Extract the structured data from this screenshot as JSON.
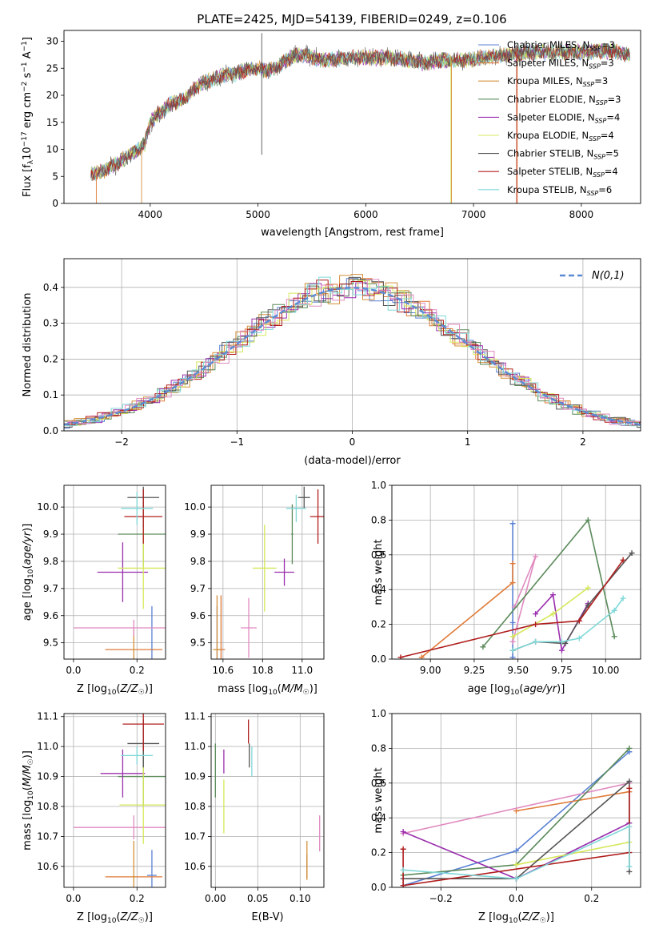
{
  "title": "PLATE=2425, MJD=54139, FIBERID=0249, z=0.106",
  "colors": {
    "Chabrier MILES": "#5b82d4",
    "Salpeter MILES": "#e07b39",
    "Kroupa MILES": "#d4903a",
    "Chabrier ELODIE": "#5a8a5a",
    "Salpeter ELODIE": "#9b2fae",
    "Kroupa ELODIE": "#d6e85a",
    "Chabrier STELIB": "#555555",
    "Salpeter STELIB": "#b01e1e",
    "Kroupa STELIB": "#80d8d8",
    "pink": "#e08ac0"
  },
  "chart_data": [
    {
      "id": "spectrum",
      "type": "line",
      "xlabel": "wavelength [Angstrom, rest frame]",
      "ylabel": "Flux [f_λ 10^-17 erg cm^-2 s^-1 A^-1]",
      "xlim": [
        3200,
        8550
      ],
      "ylim": [
        0,
        32
      ],
      "xticks": [
        "4000",
        "5000",
        "6000",
        "7000",
        "8000"
      ],
      "yticks": [
        "0",
        "5",
        "10",
        "15",
        "20",
        "25",
        "30"
      ],
      "legend_position": "upper right",
      "legend": [
        {
          "label": "Chabrier MILES, N_SSP=3",
          "base": "Chabrier MILES, N",
          "sub": "SSP",
          "tail": "=3"
        },
        {
          "label": "Salpeter MILES, N_SSP=3",
          "base": "Salpeter MILES, N",
          "sub": "SSP",
          "tail": "=3"
        },
        {
          "label": "Kroupa MILES, N_SSP=3",
          "base": "Kroupa MILES, N",
          "sub": "SSP",
          "tail": "=3"
        },
        {
          "label": "Chabrier ELODIE, N_SSP=3",
          "base": "Chabrier ELODIE, N",
          "sub": "SSP",
          "tail": "=3"
        },
        {
          "label": "Salpeter ELODIE, N_SSP=4",
          "base": "Salpeter ELODIE, N",
          "sub": "SSP",
          "tail": "=4"
        },
        {
          "label": "Kroupa ELODIE, N_SSP=4",
          "base": "Kroupa ELODIE, N",
          "sub": "SSP",
          "tail": "=4"
        },
        {
          "label": "Chabrier STELIB, N_SSP=5",
          "base": "Chabrier STELIB, N",
          "sub": "SSP",
          "tail": "=5"
        },
        {
          "label": "Salpeter STELIB, N_SSP=4",
          "base": "Salpeter STELIB, N",
          "sub": "SSP",
          "tail": "=4"
        },
        {
          "label": "Kroupa STELIB, N_SSP=6",
          "base": "Kroupa STELIB, N",
          "sub": "SSP",
          "tail": "=6"
        }
      ],
      "continuum": [
        [
          3450,
          5.5
        ],
        [
          3550,
          5.8
        ],
        [
          3700,
          7.5
        ],
        [
          3850,
          9.5
        ],
        [
          3950,
          11
        ],
        [
          4000,
          15
        ],
        [
          4100,
          17
        ],
        [
          4200,
          18.5
        ],
        [
          4300,
          19
        ],
        [
          4400,
          21
        ],
        [
          4500,
          22.5
        ],
        [
          4600,
          23
        ],
        [
          4700,
          23.8
        ],
        [
          4800,
          24
        ],
        [
          4900,
          24.8
        ],
        [
          5000,
          25
        ],
        [
          5100,
          24.5
        ],
        [
          5200,
          25.5
        ],
        [
          5300,
          27
        ],
        [
          5400,
          27.5
        ],
        [
          5600,
          26.5
        ],
        [
          5800,
          26.8
        ],
        [
          5900,
          27
        ],
        [
          6000,
          27
        ],
        [
          6200,
          27
        ],
        [
          6400,
          26.5
        ],
        [
          6560,
          26
        ],
        [
          6700,
          26.5
        ],
        [
          6900,
          26.5
        ],
        [
          7100,
          27
        ],
        [
          7300,
          27.5
        ],
        [
          7400,
          27.8
        ],
        [
          7700,
          28
        ],
        [
          8000,
          28
        ],
        [
          8300,
          28.2
        ],
        [
          8450,
          27.5
        ]
      ]
    },
    {
      "id": "residuals",
      "type": "histogram",
      "xlabel": "(data-model)/error",
      "ylabel": "Normed distribution",
      "xlim": [
        -2.5,
        2.5
      ],
      "ylim": [
        0,
        0.48
      ],
      "xticks": [
        "−2",
        "−1",
        "0",
        "1",
        "2"
      ],
      "yticks": [
        "0.0",
        "0.1",
        "0.2",
        "0.3",
        "0.4"
      ],
      "legend_label": "N(0,1)",
      "legend_position": "upper right",
      "bin_width": 0.1
    },
    {
      "id": "age-vs-Z",
      "type": "scatter",
      "xlabel": "Z [log10(Z/Z☉)]",
      "ylabel": "age [log10(age/yr)]",
      "xlim": [
        -0.03,
        0.29
      ],
      "ylim": [
        9.44,
        10.08
      ],
      "xticks": [
        "0.0",
        "0.2"
      ],
      "yticks": [
        "9.5",
        "9.6",
        "9.7",
        "9.8",
        "9.9",
        "10.0"
      ],
      "points": [
        {
          "model": "Chabrier MILES",
          "x": 0.247,
          "y": 9.475,
          "xerr": 0.005,
          "yerr": 0.16
        },
        {
          "model": "Salpeter MILES",
          "x": 0.19,
          "y": 9.475,
          "xerr": 0.09,
          "yerr": 0.0
        },
        {
          "model": "Kroupa MILES",
          "x": 0.19,
          "y": 9.475,
          "xerr": 0.005,
          "yerr": 0.08
        },
        {
          "model": "pink",
          "x": 0.19,
          "y": 9.555,
          "xerr": 0.19,
          "yerr": 0.03
        },
        {
          "model": "Chabrier ELODIE",
          "x": 0.22,
          "y": 9.9,
          "xerr": 0.08,
          "yerr": 0.12
        },
        {
          "model": "Salpeter ELODIE",
          "x": 0.155,
          "y": 9.76,
          "xerr": 0.08,
          "yerr": 0.11
        },
        {
          "model": "Kroupa ELODIE",
          "x": 0.22,
          "y": 9.775,
          "xerr": 0.08,
          "yerr": 0.15
        },
        {
          "model": "Chabrier STELIB",
          "x": 0.22,
          "y": 10.035,
          "xerr": 0.05,
          "yerr": 0.04
        },
        {
          "model": "Salpeter STELIB",
          "x": 0.22,
          "y": 9.965,
          "xerr": 0.06,
          "yerr": 0.1
        },
        {
          "model": "Kroupa STELIB",
          "x": 0.2,
          "y": 9.995,
          "xerr": 0.05,
          "yerr": 0.06
        }
      ]
    },
    {
      "id": "age-vs-mass",
      "type": "scatter",
      "xlabel": "mass [log10(M/M☉)]",
      "ylabel": "",
      "xlim": [
        10.54,
        11.11
      ],
      "ylim": [
        9.44,
        10.08
      ],
      "xticks": [
        "10.6",
        "10.8",
        "11.0"
      ],
      "yticks": [
        "9.5",
        "9.6",
        "9.7",
        "9.8",
        "9.9",
        "10.0"
      ],
      "points": [
        {
          "model": "Chabrier MILES",
          "x": 10.57,
          "y": 9.475,
          "xerr": 0.002,
          "yerr": 0.16
        },
        {
          "model": "Salpeter MILES",
          "x": 10.59,
          "y": 9.475,
          "xerr": 0.02,
          "yerr": 0.2
        },
        {
          "model": "Kroupa MILES",
          "x": 10.57,
          "y": 9.475,
          "xerr": 0.02,
          "yerr": 0.2
        },
        {
          "model": "pink",
          "x": 10.73,
          "y": 9.555,
          "xerr": 0.04,
          "yerr": 0.11
        },
        {
          "model": "Chabrier ELODIE",
          "x": 10.95,
          "y": 9.9,
          "xerr": 0.005,
          "yerr": 0.11
        },
        {
          "model": "Salpeter ELODIE",
          "x": 10.91,
          "y": 9.76,
          "xerr": 0.05,
          "yerr": 0.05
        },
        {
          "model": "Kroupa ELODIE",
          "x": 10.81,
          "y": 9.775,
          "xerr": 0.06,
          "yerr": 0.16
        },
        {
          "model": "Chabrier STELIB",
          "x": 11.01,
          "y": 10.035,
          "xerr": 0.03,
          "yerr": 0.04
        },
        {
          "model": "Salpeter STELIB",
          "x": 11.08,
          "y": 9.965,
          "xerr": 0.04,
          "yerr": 0.1
        },
        {
          "model": "Kroupa STELIB",
          "x": 10.97,
          "y": 9.995,
          "xerr": 0.05,
          "yerr": 0.05
        }
      ]
    },
    {
      "id": "weight-vs-age",
      "type": "line",
      "xlabel": "age [log10(age/yr)]",
      "ylabel": "mass weight",
      "xlim": [
        8.78,
        10.2
      ],
      "ylim": [
        0,
        1.0
      ],
      "xticks": [
        "9.00",
        "9.25",
        "9.50",
        "9.75",
        "10.00"
      ],
      "yticks": [
        "0.0",
        "0.2",
        "0.4",
        "0.6",
        "0.8",
        "1.0"
      ],
      "series": [
        {
          "model": "Chabrier MILES",
          "points": [
            [
              9.47,
              0.78
            ],
            [
              9.47,
              0.21
            ],
            [
              9.47,
              0.01
            ]
          ]
        },
        {
          "model": "Salpeter MILES",
          "points": [
            [
              8.95,
              0.01
            ],
            [
              9.47,
              0.44
            ],
            [
              9.47,
              0.55
            ]
          ]
        },
        {
          "model": "pink",
          "points": [
            [
              9.47,
              0.1
            ],
            [
              9.6,
              0.59
            ],
            [
              9.48,
              0.3
            ]
          ]
        },
        {
          "model": "Chabrier ELODIE",
          "points": [
            [
              9.3,
              0.07
            ],
            [
              9.9,
              0.8
            ],
            [
              10.05,
              0.13
            ]
          ]
        },
        {
          "model": "Salpeter ELODIE",
          "points": [
            [
              9.6,
              0.26
            ],
            [
              9.7,
              0.37
            ],
            [
              9.75,
              0.05
            ],
            [
              9.9,
              0.32
            ]
          ]
        },
        {
          "model": "Kroupa ELODIE",
          "points": [
            [
              9.47,
              0.13
            ],
            [
              9.7,
              0.26
            ],
            [
              9.9,
              0.41
            ]
          ]
        },
        {
          "model": "Chabrier STELIB",
          "points": [
            [
              9.47,
              0.05
            ],
            [
              9.6,
              0.1
            ],
            [
              9.77,
              0.09
            ],
            [
              9.9,
              0.31
            ],
            [
              10.15,
              0.61
            ]
          ]
        },
        {
          "model": "Salpeter STELIB",
          "points": [
            [
              8.83,
              0.01
            ],
            [
              9.6,
              0.2
            ],
            [
              9.85,
              0.22
            ],
            [
              10.1,
              0.57
            ]
          ]
        },
        {
          "model": "Kroupa STELIB",
          "points": [
            [
              9.47,
              0.05
            ],
            [
              9.6,
              0.1
            ],
            [
              9.75,
              0.1
            ],
            [
              9.85,
              0.12
            ],
            [
              10.05,
              0.28
            ],
            [
              10.1,
              0.35
            ]
          ]
        }
      ]
    },
    {
      "id": "mass-vs-Z",
      "type": "scatter",
      "xlabel": "Z [log10(Z/Z☉)]",
      "ylabel": "mass [log10(M/M☉)]",
      "xlim": [
        -0.03,
        0.29
      ],
      "ylim": [
        10.53,
        11.11
      ],
      "xticks": [
        "0.0",
        "0.2"
      ],
      "yticks": [
        "10.6",
        "10.7",
        "10.8",
        "10.9",
        "11.0",
        "11.1"
      ],
      "points": [
        {
          "model": "Chabrier MILES",
          "x": 0.247,
          "y": 10.57,
          "xerr": 0.015,
          "yerr": 0.085
        },
        {
          "model": "Salpeter MILES",
          "x": 0.19,
          "y": 10.565,
          "xerr": 0.09,
          "yerr": 0.0
        },
        {
          "model": "Kroupa MILES",
          "x": 0.19,
          "y": 10.565,
          "xerr": 0.005,
          "yerr": 0.12
        },
        {
          "model": "pink",
          "x": 0.19,
          "y": 10.73,
          "xerr": 0.19,
          "yerr": 0.04
        },
        {
          "model": "Chabrier ELODIE",
          "x": 0.22,
          "y": 10.9,
          "xerr": 0.08,
          "yerr": 0.1
        },
        {
          "model": "Salpeter ELODIE",
          "x": 0.155,
          "y": 10.91,
          "xerr": 0.07,
          "yerr": 0.08
        },
        {
          "model": "Kroupa ELODIE",
          "x": 0.22,
          "y": 10.805,
          "xerr": 0.075,
          "yerr": 0.13
        },
        {
          "model": "Chabrier STELIB",
          "x": 0.22,
          "y": 11.01,
          "xerr": 0.05,
          "yerr": 0.08
        },
        {
          "model": "Salpeter STELIB",
          "x": 0.22,
          "y": 11.075,
          "xerr": 0.065,
          "yerr": 0.09
        },
        {
          "model": "Kroupa STELIB",
          "x": 0.2,
          "y": 10.97,
          "xerr": 0.05,
          "yerr": 0.03
        }
      ]
    },
    {
      "id": "mass-vs-EBV",
      "type": "scatter",
      "xlabel": "E(B-V)",
      "ylabel": "",
      "xlim": [
        -0.005,
        0.128
      ],
      "ylim": [
        10.53,
        11.11
      ],
      "xticks": [
        "0.00",
        "0.05",
        "0.10"
      ],
      "yticks": [
        "10.6",
        "10.7",
        "10.8",
        "10.9",
        "11.0",
        "11.1"
      ],
      "points": [
        {
          "model": "Chabrier MILES",
          "x": 0.108,
          "y": 10.6,
          "xerr": 0,
          "yerr": 0.04
        },
        {
          "model": "Salpeter MILES",
          "x": 0.108,
          "y": 10.6,
          "xerr": 0,
          "yerr": 0.04
        },
        {
          "model": "Kroupa MILES",
          "x": 0.108,
          "y": 10.62,
          "xerr": 0,
          "yerr": 0.065
        },
        {
          "model": "pink",
          "x": 0.123,
          "y": 10.71,
          "xerr": 0,
          "yerr": 0.06
        },
        {
          "model": "Chabrier ELODIE",
          "x": 0.0,
          "y": 10.92,
          "xerr": 0,
          "yerr": 0.09
        },
        {
          "model": "Salpeter ELODIE",
          "x": 0.01,
          "y": 10.95,
          "xerr": 0,
          "yerr": 0.04
        },
        {
          "model": "Kroupa ELODIE",
          "x": 0.01,
          "y": 10.8,
          "xerr": 0,
          "yerr": 0.09
        },
        {
          "model": "Chabrier STELIB",
          "x": 0.04,
          "y": 10.97,
          "xerr": 0,
          "yerr": 0.04
        },
        {
          "model": "Salpeter STELIB",
          "x": 0.039,
          "y": 11.05,
          "xerr": 0,
          "yerr": 0.04
        },
        {
          "model": "Kroupa STELIB",
          "x": 0.043,
          "y": 10.95,
          "xerr": 0,
          "yerr": 0.05
        }
      ]
    },
    {
      "id": "weight-vs-Z",
      "type": "line",
      "xlabel": "Z [log10(Z/Z☉)]",
      "ylabel": "mass weight",
      "xlim": [
        -0.33,
        0.33
      ],
      "ylim": [
        0,
        1.0
      ],
      "xticks": [
        "−0.2",
        "0.0",
        "0.2"
      ],
      "yticks": [
        "0.0",
        "0.2",
        "0.4",
        "0.6",
        "0.8",
        "1.0"
      ],
      "series": [
        {
          "model": "Chabrier MILES",
          "points": [
            [
              -0.3,
              0.01
            ],
            [
              0.0,
              0.21
            ],
            [
              0.3,
              0.78
            ]
          ]
        },
        {
          "model": "Salpeter MILES",
          "points": [
            [
              0.0,
              0.44
            ],
            [
              0.3,
              0.55
            ]
          ]
        },
        {
          "model": "pink",
          "points": [
            [
              -0.3,
              0.31
            ],
            [
              0.3,
              0.6
            ]
          ]
        },
        {
          "model": "Chabrier ELODIE",
          "points": [
            [
              -0.3,
              0.07
            ],
            [
              0.0,
              0.13
            ],
            [
              0.3,
              0.8
            ]
          ]
        },
        {
          "model": "Salpeter ELODIE",
          "points": [
            [
              -0.3,
              0.32
            ],
            [
              0.0,
              0.05
            ],
            [
              0.3,
              0.37
            ]
          ]
        },
        {
          "model": "Kroupa ELODIE",
          "points": [
            [
              0.0,
              0.13
            ],
            [
              0.3,
              0.26
            ]
          ]
        },
        {
          "model": "Chabrier STELIB",
          "points": [
            [
              -0.3,
              0.05
            ],
            [
              0.0,
              0.05
            ],
            [
              0.3,
              0.61
            ],
            [
              0.3,
              0.09
            ]
          ]
        },
        {
          "model": "Salpeter STELIB",
          "points": [
            [
              -0.3,
              0.22
            ],
            [
              -0.3,
              0.01
            ],
            [
              0.3,
              0.2
            ],
            [
              0.3,
              0.57
            ]
          ]
        },
        {
          "model": "Kroupa STELIB",
          "points": [
            [
              -0.3,
              0.1
            ],
            [
              0.0,
              0.05
            ],
            [
              0.3,
              0.35
            ],
            [
              0.3,
              0.12
            ]
          ]
        }
      ]
    }
  ]
}
